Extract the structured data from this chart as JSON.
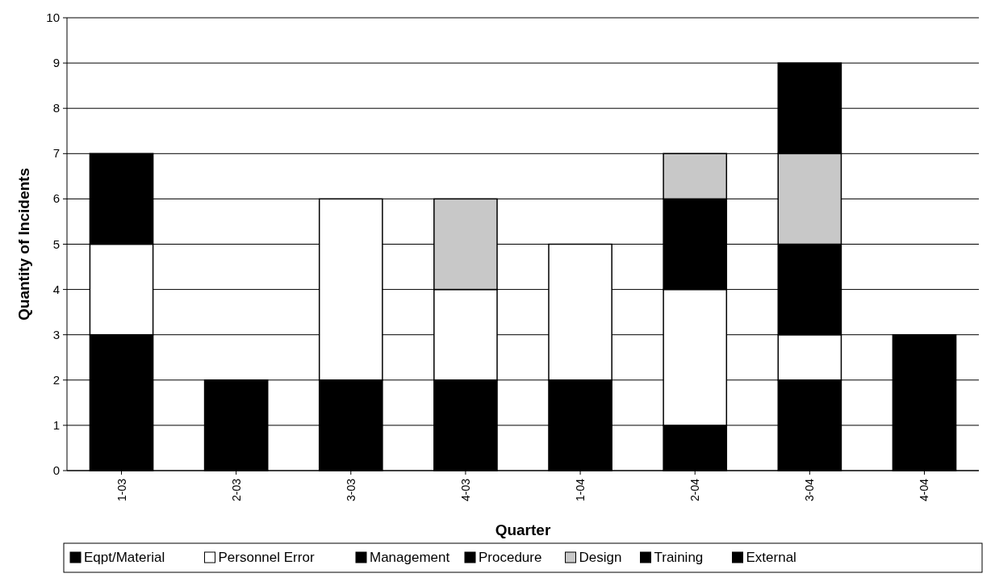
{
  "chart_data": {
    "type": "bar",
    "stacked": true,
    "xlabel": "Quarter",
    "ylabel": "Quantity of Incidents",
    "categories": [
      "1-03",
      "2-03",
      "3-03",
      "4-03",
      "1-04",
      "2-04",
      "3-04",
      "4-04"
    ],
    "series": [
      {
        "name": "Eqpt/Material",
        "color": "#000000",
        "values": [
          3,
          2,
          2,
          2,
          2,
          1,
          2,
          3
        ]
      },
      {
        "name": "Personnel Error",
        "color": "#ffffff",
        "values": [
          2,
          0,
          4,
          2,
          3,
          3,
          1,
          0
        ]
      },
      {
        "name": "Management",
        "color": "#000000",
        "values": [
          2,
          0,
          0,
          0,
          0,
          0,
          0,
          0
        ]
      },
      {
        "name": "Procedure",
        "color": "#000000",
        "values": [
          0,
          0,
          0,
          0,
          0,
          2,
          2,
          0
        ]
      },
      {
        "name": "Design",
        "color": "#c8c8c8",
        "values": [
          0,
          0,
          0,
          2,
          0,
          1,
          2,
          0
        ]
      },
      {
        "name": "Training",
        "color": "#000000",
        "values": [
          0,
          0,
          0,
          0,
          0,
          0,
          2,
          0
        ]
      },
      {
        "name": "External",
        "color": "#000000",
        "values": [
          0,
          0,
          0,
          0,
          0,
          0,
          0,
          0
        ]
      }
    ],
    "ylim": [
      0,
      10
    ],
    "yticks": [
      0,
      1,
      2,
      3,
      4,
      5,
      6,
      7,
      8,
      9,
      10
    ],
    "grid": "y",
    "legend": "bottom"
  }
}
